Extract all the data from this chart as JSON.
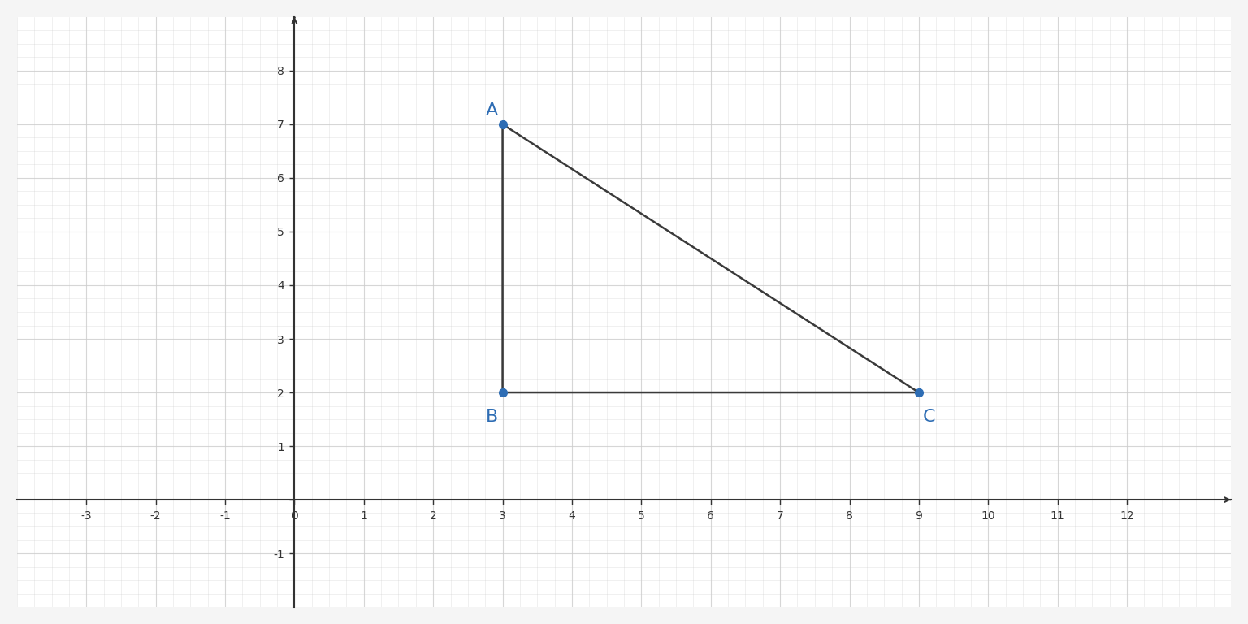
{
  "points": {
    "A": [
      3,
      7
    ],
    "B": [
      3,
      2
    ],
    "C": [
      9,
      2
    ]
  },
  "triangle_color": "#3a3a3a",
  "point_color": "#2e6db4",
  "label_color": "#2e6db4",
  "background_color": "#f5f5f5",
  "plot_bg_color": "#ffffff",
  "xlim": [
    -4,
    13.5
  ],
  "ylim": [
    -2,
    9
  ],
  "xticks": [
    -3,
    -2,
    -1,
    0,
    1,
    2,
    3,
    4,
    5,
    6,
    7,
    8,
    9,
    10,
    11,
    12
  ],
  "yticks": [
    -1,
    0,
    1,
    2,
    3,
    4,
    5,
    6,
    7,
    8
  ],
  "grid_color": "#cccccc",
  "axis_color": "#333333",
  "font_size_labels": 14,
  "font_size_ticks": 13,
  "point_size": 7,
  "line_width": 1.8
}
